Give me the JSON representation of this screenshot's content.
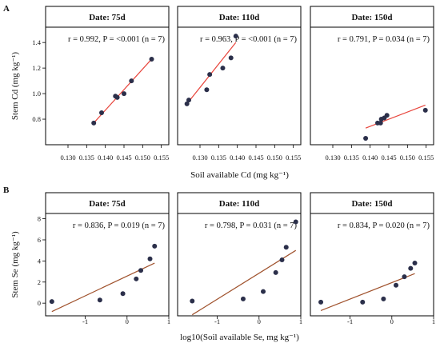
{
  "tags": [
    "A",
    "B"
  ],
  "chart_data": [
    {
      "type": "scatter",
      "tag": "A",
      "xlabel": "Soil available Cd (mg kg⁻¹)",
      "ylabel": "Stem Cd (mg kg⁻¹)",
      "xlim": [
        0.124,
        0.157
      ],
      "ylim": [
        0.6,
        1.52
      ],
      "xticks": [
        0.13,
        0.135,
        0.14,
        0.145,
        0.15,
        0.155
      ],
      "xtick_labels": [
        "0.130",
        "0.135",
        "0.140",
        "0.145",
        "0.150",
        "0.155"
      ],
      "yticks": [
        0.8,
        1.0,
        1.2,
        1.4
      ],
      "ytick_labels": [
        "0.8",
        "1.0",
        "1.2",
        "1.4"
      ],
      "point_color": "#2b2f4a",
      "line_color": "#e8453c",
      "panels": [
        {
          "title": "Date: 75d",
          "stats": "r = 0.992, P = <0.001 (n = 7)",
          "x": [
            0.1369,
            0.139,
            0.1427,
            0.1432,
            0.145,
            0.147,
            0.1524
          ],
          "y": [
            0.77,
            0.85,
            0.98,
            0.97,
            1.0,
            1.1,
            1.27
          ],
          "fit": [
            [
              0.1369,
              0.77
            ],
            [
              0.1524,
              1.27
            ]
          ]
        },
        {
          "title": "Date: 110d",
          "stats": "r = 0.963, P = <0.001 (n = 7)",
          "x": [
            0.1265,
            0.127,
            0.1318,
            0.1326,
            0.1361,
            0.1383,
            0.1396
          ],
          "y": [
            0.92,
            0.95,
            1.03,
            1.15,
            1.2,
            1.28,
            1.45
          ],
          "fit": [
            [
              0.1265,
              0.92
            ],
            [
              0.1396,
              1.4
            ]
          ]
        },
        {
          "title": "Date: 150d",
          "stats": "r = 0.791, P = 0.034 (n = 7)",
          "x": [
            0.1388,
            0.142,
            0.1428,
            0.143,
            0.1438,
            0.1445,
            0.1548
          ],
          "y": [
            0.65,
            0.77,
            0.77,
            0.8,
            0.81,
            0.83,
            0.87
          ],
          "fit": [
            [
              0.1388,
              0.73
            ],
            [
              0.1548,
              0.91
            ]
          ]
        }
      ]
    },
    {
      "type": "scatter",
      "tag": "B",
      "xlabel": "log10(Soil available Se, mg kg⁻¹)",
      "ylabel": "Stem Se (mg kg⁻¹)",
      "xlim": [
        -1.95,
        1.0
      ],
      "ylim": [
        -1.2,
        8.5
      ],
      "xticks": [
        -1,
        0,
        1
      ],
      "xtick_labels": [
        "-1",
        "0",
        "1"
      ],
      "yticks": [
        0,
        2,
        4,
        6,
        8
      ],
      "ytick_labels": [
        "0",
        "2",
        "4",
        "6",
        "8"
      ],
      "point_color": "#2b2f4a",
      "line_color": "#a0522d",
      "panels": [
        {
          "title": "Date: 75d",
          "stats": "r = 0.836, P = 0.019 (n = 7)",
          "x": [
            -1.8,
            -0.65,
            -0.1,
            0.22,
            0.33,
            0.55,
            0.66
          ],
          "y": [
            0.15,
            0.3,
            0.9,
            2.3,
            3.1,
            4.2,
            5.4
          ],
          "fit": [
            [
              -1.8,
              -0.8
            ],
            [
              0.66,
              3.8
            ]
          ]
        },
        {
          "title": "Date: 110d",
          "stats": "r = 0.798, P = 0.031 (n = 7)",
          "x": [
            -1.6,
            -0.38,
            0.1,
            0.4,
            0.55,
            0.65,
            0.88
          ],
          "y": [
            0.2,
            0.4,
            1.1,
            2.9,
            4.1,
            5.3,
            7.7
          ],
          "fit": [
            [
              -1.6,
              -1.1
            ],
            [
              0.88,
              5.0
            ]
          ]
        },
        {
          "title": "Date: 150d",
          "stats": "r = 0.834, P = 0.020 (n = 7)",
          "x": [
            -1.7,
            -0.7,
            -0.2,
            0.1,
            0.3,
            0.45,
            0.55
          ],
          "y": [
            0.1,
            0.1,
            0.4,
            1.7,
            2.5,
            3.3,
            3.8
          ],
          "fit": [
            [
              -1.7,
              -0.7
            ],
            [
              0.55,
              2.8
            ]
          ]
        }
      ]
    }
  ]
}
